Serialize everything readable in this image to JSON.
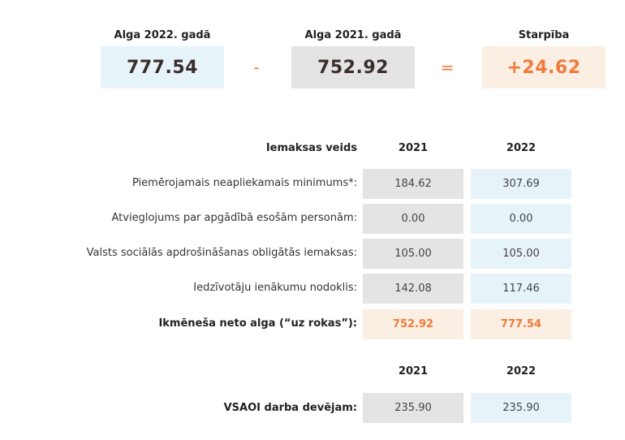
{
  "summary": {
    "label_2022": "Alga 2022. gadā",
    "label_2021": "Alga 2021. gadā",
    "label_diff": "Starpība",
    "value_2022": "777.54",
    "value_2021": "752.92",
    "value_diff": "+24.62",
    "minus_sign": "-",
    "equals_sign": "="
  },
  "table": {
    "header_label": "Iemaksas veids",
    "col_2021": "2021",
    "col_2022": "2022",
    "rows": [
      {
        "label": "Piemērojamais neapliekamais minimums*:",
        "v2021": "184.62",
        "v2022": "307.69"
      },
      {
        "label": "Atvieglojums par apgādībā esošām personām:",
        "v2021": "0.00",
        "v2022": "0.00"
      },
      {
        "label": "Valsts sociālās apdrošināšanas obligātās iemaksas:",
        "v2021": "105.00",
        "v2022": "105.00"
      },
      {
        "label": "Iedzīvotāju ienākumu nodoklis:",
        "v2021": "142.08",
        "v2022": "117.46"
      },
      {
        "label": "Ikmēneša neto alga (“uz rokas”):",
        "v2021": "752.92",
        "v2022": "777.54"
      }
    ]
  },
  "employer": {
    "col_2021": "2021",
    "col_2022": "2022",
    "label": "VSAOI darba devējam:",
    "v2021": "235.90",
    "v2022": "235.90"
  },
  "colors": {
    "accent": "#f07a3a",
    "blue_cell": "#e6f4fa",
    "gray_cell": "#e4e4e4",
    "peach_cell": "#fbeee2"
  }
}
